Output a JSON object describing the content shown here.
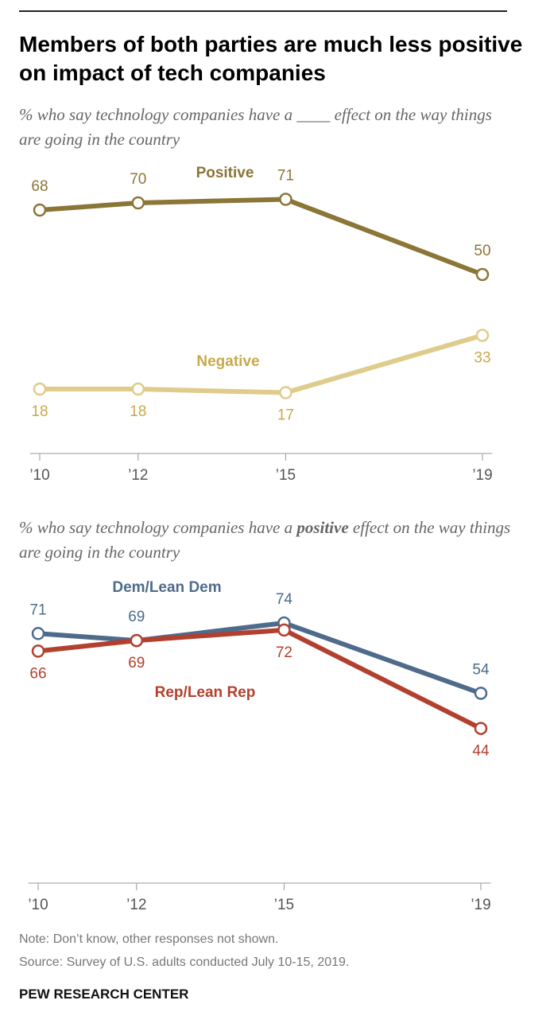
{
  "title": "Members of both parties are much less positive on impact of tech companies",
  "chart_data": [
    {
      "type": "line",
      "subtitle": "% who say technology companies have a ____ effect on the way things are going in the country",
      "x": [
        2010,
        2012,
        2015,
        2019
      ],
      "xlim": [
        2009.8,
        2019.2
      ],
      "xticks": [
        {
          "value": 2010,
          "label": "’10"
        },
        {
          "value": 2012,
          "label": "’12"
        },
        {
          "value": 2015,
          "label": "’15"
        },
        {
          "value": 2019,
          "label": "’19"
        }
      ],
      "ylim": [
        0,
        80
      ],
      "series": [
        {
          "name": "Positive",
          "color": "#8b7537",
          "label_color": "#8b7537",
          "values": [
            68,
            70,
            71,
            50
          ]
        },
        {
          "name": "Negative",
          "color": "#dfcb8b",
          "label_color": "#c9a94c",
          "values": [
            18,
            18,
            17,
            33
          ]
        }
      ]
    },
    {
      "type": "line",
      "subtitle": [
        "% who say technology companies have a ",
        "positive",
        " effect on the way things are going in the country"
      ],
      "x": [
        2010,
        2012,
        2015,
        2019
      ],
      "xlim": [
        2009.8,
        2019.2
      ],
      "xticks": [
        {
          "value": 2010,
          "label": "’10"
        },
        {
          "value": 2012,
          "label": "’12"
        },
        {
          "value": 2015,
          "label": "’15"
        },
        {
          "value": 2019,
          "label": "’19"
        }
      ],
      "ylim": [
        0,
        86
      ],
      "series": [
        {
          "name": "Dem/Lean Dem",
          "color": "#4e6b8b",
          "label_color": "#4e6b8b",
          "values": [
            71,
            69,
            74,
            54
          ]
        },
        {
          "name": "Rep/Lean Rep",
          "color": "#b3402e",
          "label_color": "#b3402e",
          "values": [
            66,
            69,
            72,
            44
          ]
        }
      ]
    }
  ],
  "note": "Note: Don’t know, other responses not shown.",
  "source": "Source: Survey of U.S. adults conducted July 10-15, 2019.",
  "footer": "PEW RESEARCH CENTER"
}
